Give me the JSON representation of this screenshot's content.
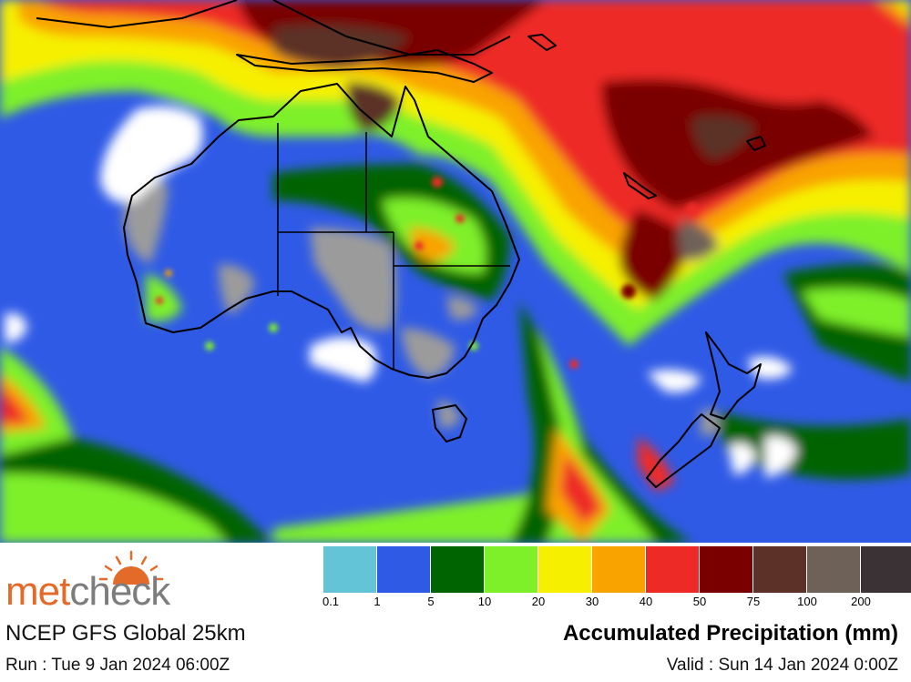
{
  "legend": {
    "colors": [
      "#62c4d6",
      "#2f5ae6",
      "#006400",
      "#7ef02a",
      "#f6f000",
      "#f9a300",
      "#ee2a26",
      "#7a0000",
      "#5c3128",
      "#6e6258",
      "#3b3236"
    ],
    "labels": [
      "0.1",
      "1",
      "5",
      "10",
      "20",
      "30",
      "40",
      "50",
      "75",
      "100",
      "200"
    ]
  },
  "brand": {
    "logo_met": "met",
    "logo_check": "check",
    "logo_icon": "sun-icon"
  },
  "model_label": "NCEP GFS Global 25km",
  "map_title": "Accumulated Precipitation (mm)",
  "run_label": "Run : Tue 9 Jan 2024 06:00Z",
  "valid_label": "Valid : Sun 14 Jan 2024 0:00Z"
}
